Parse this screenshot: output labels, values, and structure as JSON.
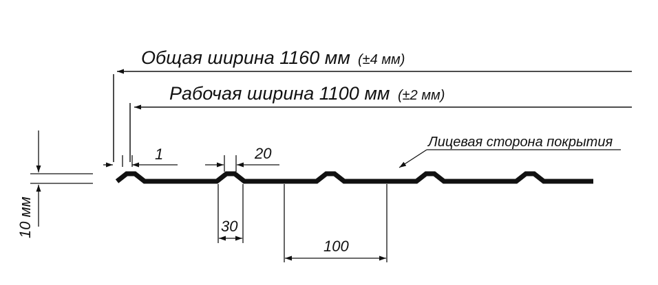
{
  "labels": {
    "total_main": "Общая ширина 1160 мм",
    "total_tol": "(±4 мм)",
    "work_main": "Рабочая ширина 1100 мм",
    "work_tol": "(±2 мм)",
    "face_side": "Лицевая сторона покрытия"
  },
  "dimensions": {
    "edge_gap": "1",
    "rib_top": "20",
    "rib_base": "30",
    "rib_pitch": "100",
    "height": "10 мм"
  },
  "colors": {
    "ink": "#111111",
    "sheet": "#111111",
    "background": "#ffffff"
  }
}
